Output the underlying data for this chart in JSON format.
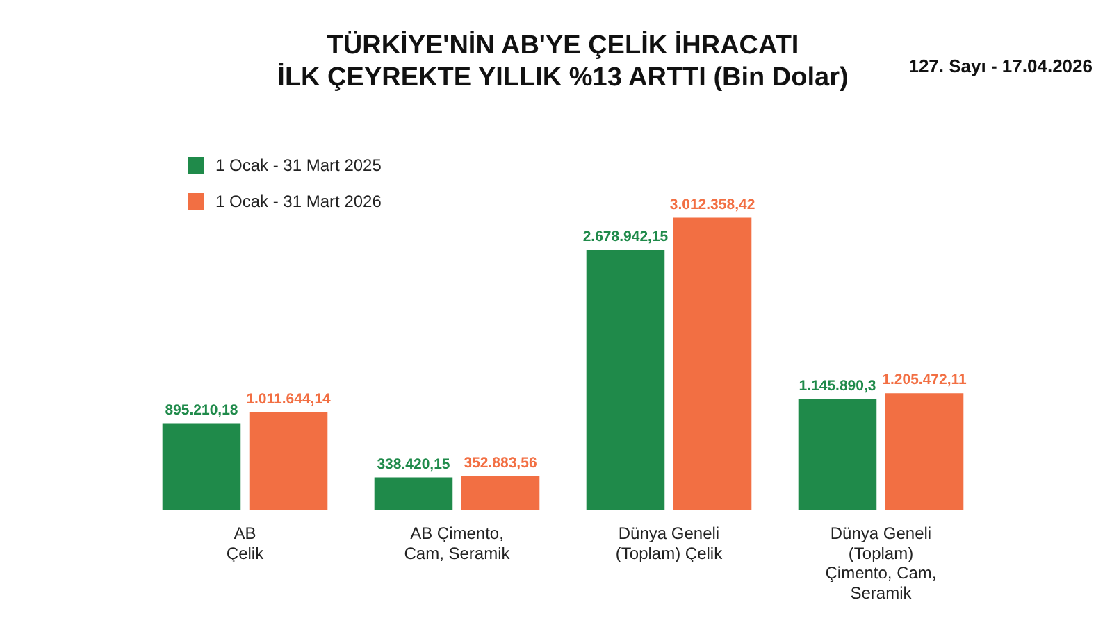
{
  "chart_data": {
    "type": "bar",
    "title": "TÜRKİYE'NİN AB'YE ÇELİK İHRACATI\nİLK ÇEYREKTE YILLIK %13 ARTTI (Bin Dolar)",
    "categories": [
      "AB\nÇelik",
      "AB Çimento,\nCam, Seramik",
      "Dünya Geneli\n(Toplam) Çelik",
      "Dünya Geneli\n(Toplam)\nÇimento, Cam,\nSeramik"
    ],
    "series": [
      {
        "name": "1 Ocak - 31 Mart 2025",
        "color": "#1f8a4a",
        "values": [
          895210.18,
          338420.15,
          2678942.15,
          1145890.3
        ],
        "value_labels": [
          "895.210,18",
          "338.420,15",
          "2.678.942,15",
          "1.145.890,3"
        ]
      },
      {
        "name": "1 Ocak - 31 Mart 2026",
        "color": "#f26f43",
        "values": [
          1011644.14,
          352883.56,
          3012358.42,
          1205472.11
        ],
        "value_labels": [
          "1.011.644,14",
          "352.883,56",
          "3.012.358,42",
          "1.205.472,11"
        ]
      }
    ],
    "legend": "top left",
    "grid": false,
    "annotations": [
      "127. Sayı - 17.04.2026"
    ]
  }
}
